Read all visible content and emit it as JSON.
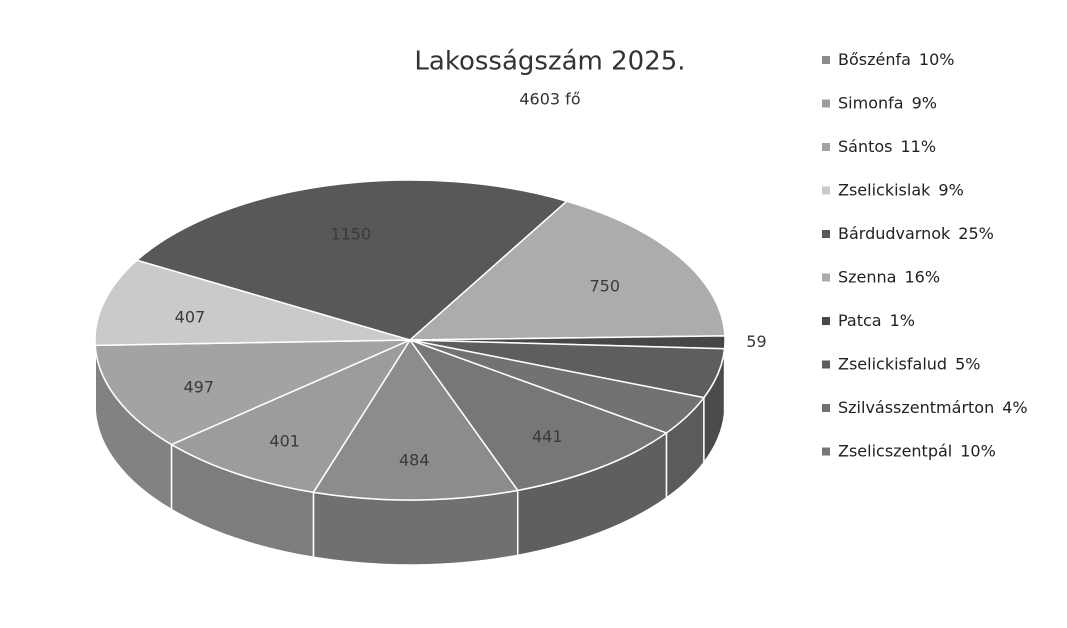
{
  "chart_data": {
    "type": "pie3d",
    "title": "Lakosságszám 2025.",
    "subtitle": "4603 fő",
    "categories": [
      "Bőszénfa",
      "Simonfa",
      "Sántos",
      "Zselickislak",
      "Bárdudvarnok",
      "Szenna",
      "Patca",
      "Zselickisfalud",
      "Szilvásszentmárton",
      "Zselicszentpál"
    ],
    "percent_labels": [
      "10%",
      "9%",
      "11%",
      "9%",
      "25%",
      "16%",
      "1%",
      "5%",
      "4%",
      "10%"
    ],
    "values": [
      484,
      401,
      497,
      407,
      1150,
      750,
      59,
      230,
      184,
      441
    ],
    "value_labels": [
      "484",
      "401",
      "497",
      "407",
      "1150",
      "750",
      "59",
      null,
      null,
      "441"
    ],
    "colors": [
      "#8c8c8c",
      "#9c9c9c",
      "#a3a3a3",
      "#cacaca",
      "#585858",
      "#acacac",
      "#474747",
      "#5e5e5e",
      "#727272",
      "#777777"
    ],
    "legend": "right"
  }
}
